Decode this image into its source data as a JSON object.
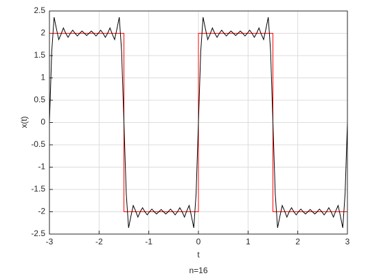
{
  "chart_data": {
    "type": "line",
    "caption": "n=16",
    "x_label": "t",
    "y_label": "x(t)",
    "xlim": [
      -3,
      3
    ],
    "ylim": [
      -2.5,
      2.5
    ],
    "xticks": [
      -3,
      -2,
      -1,
      0,
      1,
      2,
      3
    ],
    "yticks": [
      -2.5,
      -2,
      -1.5,
      -1,
      -0.5,
      0,
      0.5,
      1,
      1.5,
      2,
      2.5
    ],
    "grid": true,
    "series": [
      {
        "color": "#ff0000",
        "x": [
          -3,
          -1.5,
          -1.5,
          0,
          0,
          1.5,
          1.5,
          3,
          3
        ],
        "values": [
          2,
          2,
          -2,
          -2,
          2,
          2,
          -2,
          -2,
          2
        ]
      },
      {
        "color": "#000000",
        "x": [
          -3,
          -2.953125,
          -2.90625,
          -2.859375,
          -2.8125,
          -2.765625,
          -2.71875,
          -2.671875,
          -2.625,
          -2.578125,
          -2.53125,
          -2.484375,
          -2.4375,
          -2.390625,
          -2.34375,
          -2.296875,
          -2.25,
          -2.203125,
          -2.15625,
          -2.109375,
          -2.0625,
          -2.015625,
          -1.96875,
          -1.921875,
          -1.875,
          -1.828125,
          -1.78125,
          -1.734375,
          -1.6875,
          -1.640625,
          -1.59375,
          -1.546875,
          -1.5,
          -1.453125,
          -1.40625,
          -1.359375,
          -1.3125,
          -1.265625,
          -1.21875,
          -1.171875,
          -1.125,
          -1.078125,
          -1.03125,
          -0.984375,
          -0.9375,
          -0.890625,
          -0.84375,
          -0.796875,
          -0.75,
          -0.703125,
          -0.65625,
          -0.609375,
          -0.5625,
          -0.515625,
          -0.46875,
          -0.421875,
          -0.375,
          -0.328125,
          -0.28125,
          -0.234375,
          -0.1875,
          -0.140625,
          -0.09375,
          -0.046875,
          0,
          0.046875,
          0.09375,
          0.140625,
          0.1875,
          0.234375,
          0.28125,
          0.328125,
          0.375,
          0.421875,
          0.46875,
          0.515625,
          0.5625,
          0.609375,
          0.65625,
          0.703125,
          0.75,
          0.796875,
          0.84375,
          0.890625,
          0.9375,
          0.984375,
          1.03125,
          1.078125,
          1.125,
          1.171875,
          1.21875,
          1.265625,
          1.3125,
          1.359375,
          1.40625,
          1.453125,
          1.5,
          1.546875,
          1.59375,
          1.640625,
          1.6875,
          1.734375,
          1.78125,
          1.828125,
          1.875,
          1.921875,
          1.96875,
          2.015625,
          2.0625,
          2.109375,
          2.15625,
          2.203125,
          2.25,
          2.296875,
          2.34375,
          2.390625,
          2.4375,
          2.484375,
          2.53125,
          2.578125,
          2.625,
          2.671875,
          2.71875,
          2.765625,
          2.8125,
          2.859375,
          2.90625,
          2.953125,
          3
        ],
        "values": [
          0,
          1.6,
          2.36,
          2.1,
          1.86,
          1.98,
          2.12,
          2.0,
          1.91,
          2.0,
          2.07,
          2.0,
          1.94,
          2.0,
          2.05,
          2.0,
          1.95,
          2.0,
          2.05,
          2.0,
          1.94,
          2.0,
          2.07,
          2.0,
          1.91,
          2.0,
          2.12,
          1.98,
          1.86,
          2.1,
          2.36,
          1.6,
          0,
          -1.6,
          -2.36,
          -2.1,
          -1.86,
          -1.98,
          -2.12,
          -2.0,
          -1.91,
          -2.0,
          -2.07,
          -2.0,
          -1.94,
          -2.0,
          -2.05,
          -2.0,
          -1.95,
          -2.0,
          -2.05,
          -2.0,
          -1.94,
          -2.0,
          -2.07,
          -2.0,
          -1.91,
          -2.0,
          -2.12,
          -1.98,
          -1.86,
          -2.1,
          -2.36,
          -1.6,
          0,
          1.6,
          2.36,
          2.1,
          1.86,
          1.98,
          2.12,
          2.0,
          1.91,
          2.0,
          2.07,
          2.0,
          1.94,
          2.0,
          2.05,
          2.0,
          1.95,
          2.0,
          2.05,
          2.0,
          1.94,
          2.0,
          2.07,
          2.0,
          1.91,
          2.0,
          2.12,
          1.98,
          1.86,
          2.1,
          2.36,
          1.6,
          0,
          -1.6,
          -2.36,
          -2.1,
          -1.86,
          -1.98,
          -2.12,
          -2.0,
          -1.91,
          -2.0,
          -2.07,
          -2.0,
          -1.94,
          -2.0,
          -2.05,
          -2.0,
          -1.95,
          -2.0,
          -2.05,
          -2.0,
          -1.94,
          -2.0,
          -2.07,
          -2.0,
          -1.91,
          -2.0,
          -2.12,
          -1.98,
          -1.86,
          -2.1,
          -2.36,
          -1.6,
          0
        ]
      }
    ]
  }
}
